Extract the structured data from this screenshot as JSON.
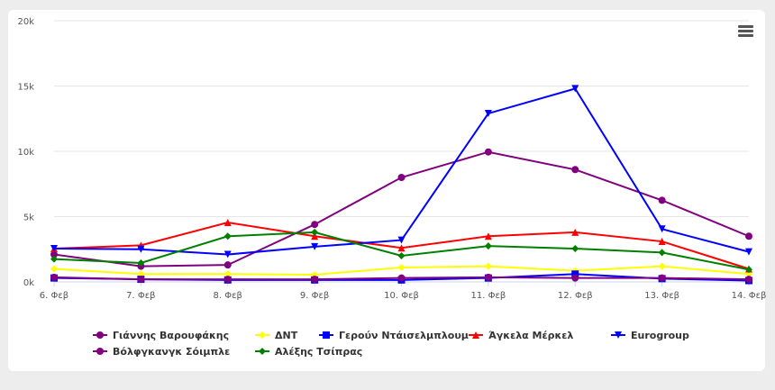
{
  "menu_icon": "hamburger-menu-icon",
  "chart_data": {
    "type": "line",
    "categories": [
      "6. Φεβ",
      "7. Φεβ",
      "8. Φεβ",
      "9. Φεβ",
      "10. Φεβ",
      "11. Φεβ",
      "12. Φεβ",
      "13. Φεβ",
      "14. Φεβ"
    ],
    "ylim": [
      0,
      20000
    ],
    "yticks": [
      0,
      5000,
      10000,
      15000,
      20000
    ],
    "ytick_labels": [
      "0k",
      "5k",
      "10k",
      "15k",
      "20k"
    ],
    "grid": true,
    "legend_position": "bottom",
    "series": [
      {
        "name": "Γιάννης Βαρουφάκης",
        "color": "#800080",
        "marker": "circle",
        "values": [
          2100,
          1200,
          1300,
          4400,
          8000,
          9950,
          8600,
          6250,
          3500
        ]
      },
      {
        "name": "ΔΝΤ",
        "color": "#ffff00",
        "marker": "diamond",
        "values": [
          1000,
          600,
          600,
          550,
          1100,
          1200,
          850,
          1200,
          600
        ]
      },
      {
        "name": "Γερούν Ντάισελμπλουμ",
        "color": "#0000ff",
        "marker": "square",
        "values": [
          300,
          200,
          150,
          150,
          150,
          300,
          600,
          250,
          100
        ]
      },
      {
        "name": "Άγκελα Μέρκελ",
        "color": "#ff0000",
        "marker": "triangle",
        "values": [
          2550,
          2800,
          4550,
          3500,
          2600,
          3500,
          3800,
          3100,
          1000
        ]
      },
      {
        "name": "Eurogroup",
        "color": "#0000ff",
        "marker": "triangle-down",
        "values": [
          2550,
          2500,
          2100,
          2700,
          3200,
          12900,
          14800,
          4050,
          2300
        ]
      },
      {
        "name": "Βόλφγκανγκ Σόιμπλε",
        "color": "#800080",
        "marker": "circle",
        "values": [
          350,
          200,
          200,
          200,
          300,
          350,
          300,
          300,
          200
        ]
      },
      {
        "name": "Αλέξης Τσίπρας",
        "color": "#008000",
        "marker": "diamond",
        "values": [
          1750,
          1450,
          3500,
          3800,
          2000,
          2750,
          2550,
          2250,
          950
        ]
      }
    ]
  }
}
